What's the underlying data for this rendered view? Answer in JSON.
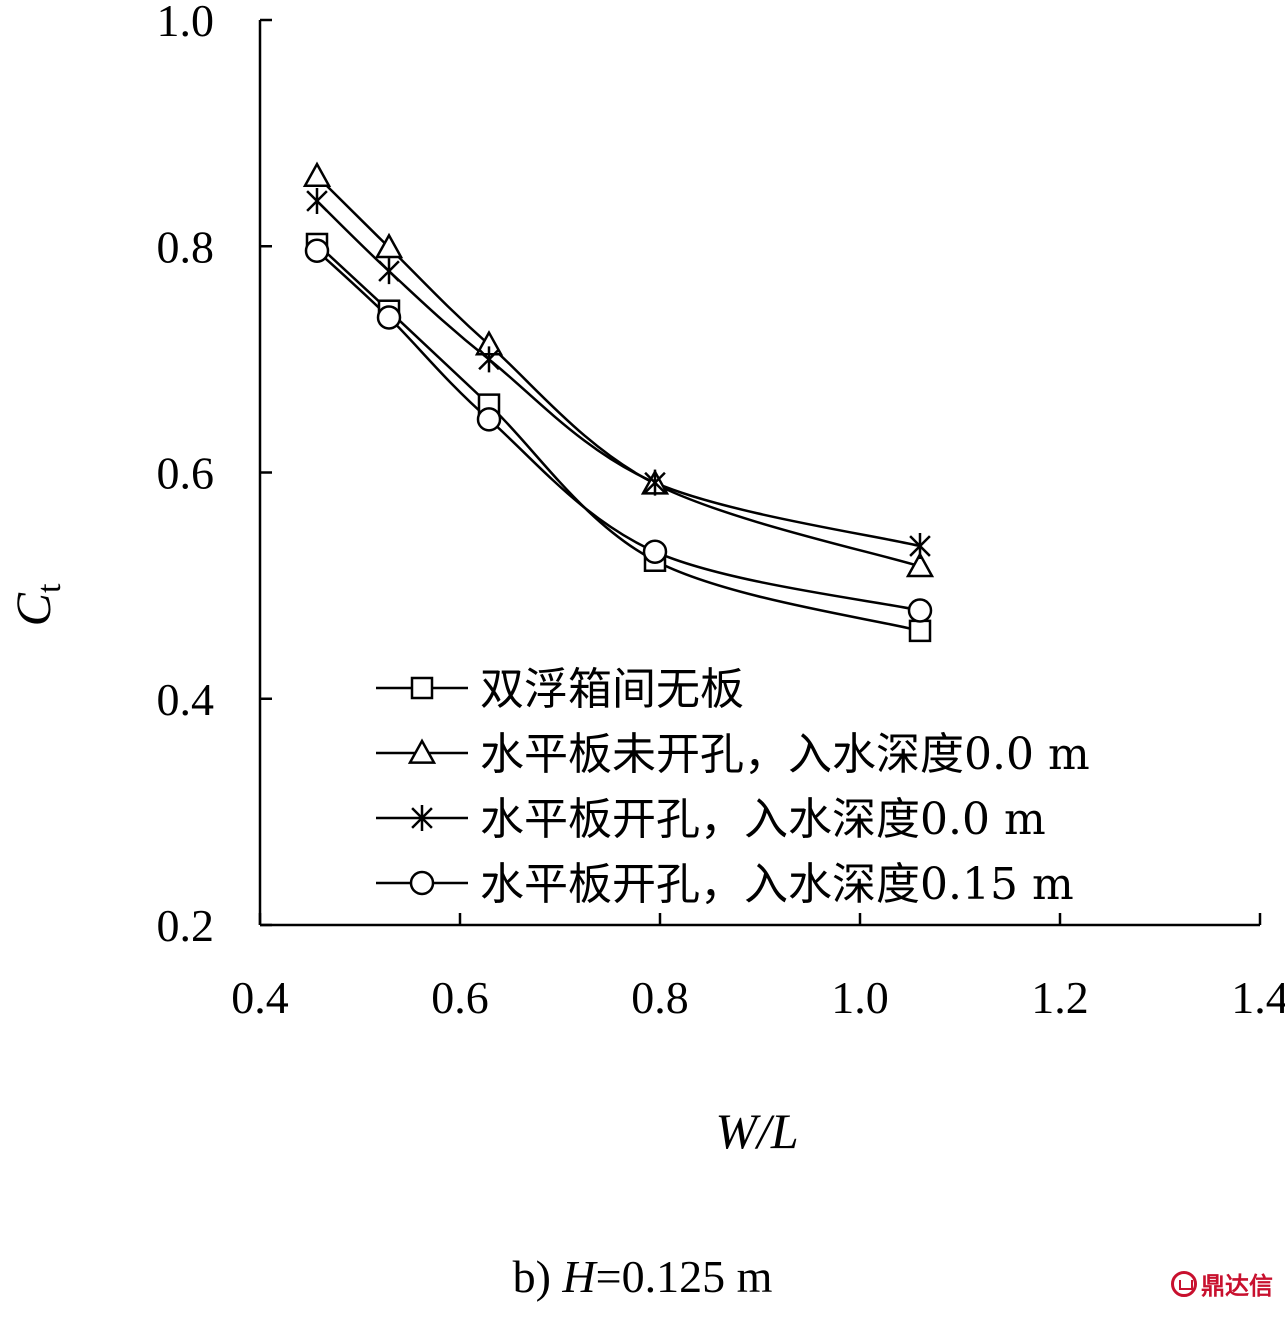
{
  "chart_data": {
    "type": "line",
    "xlabel": "W/L",
    "ylabel": {
      "main": "C",
      "sub": "t"
    },
    "xlim": [
      0.4,
      1.4
    ],
    "ylim": [
      0.2,
      1.0
    ],
    "xticks": [
      "0.4",
      "0.6",
      "0.8",
      "1.0",
      "1.2",
      "1.4"
    ],
    "yticks": [
      "0.2",
      "0.4",
      "0.6",
      "0.8",
      "1.0"
    ],
    "grid": false,
    "legend_position": "bottom-center",
    "x": [
      0.457,
      0.529,
      0.629,
      0.795,
      1.06
    ],
    "series": [
      {
        "name": "双浮箱间无板",
        "marker": "square",
        "values": [
          0.802,
          0.743,
          0.66,
          0.522,
          0.46
        ]
      },
      {
        "name": "水平板未开孔，入水深度0.0 m",
        "marker": "triangle",
        "values": [
          0.862,
          0.799,
          0.713,
          0.59,
          0.517
        ]
      },
      {
        "name": "水平板开孔，入水深度0.0 m",
        "marker": "asterisk",
        "values": [
          0.84,
          0.778,
          0.7,
          0.591,
          0.535
        ]
      },
      {
        "name": "水平板开孔，入水深度0.15 m",
        "marker": "circle",
        "values": [
          0.796,
          0.737,
          0.647,
          0.53,
          0.478
        ]
      }
    ],
    "colors": {
      "line": "#000000",
      "axis": "#000000"
    }
  },
  "caption": {
    "label": "b) ",
    "variable": "H",
    "value": "=0.125 m"
  },
  "watermark": {
    "text": "鼎达信"
  }
}
